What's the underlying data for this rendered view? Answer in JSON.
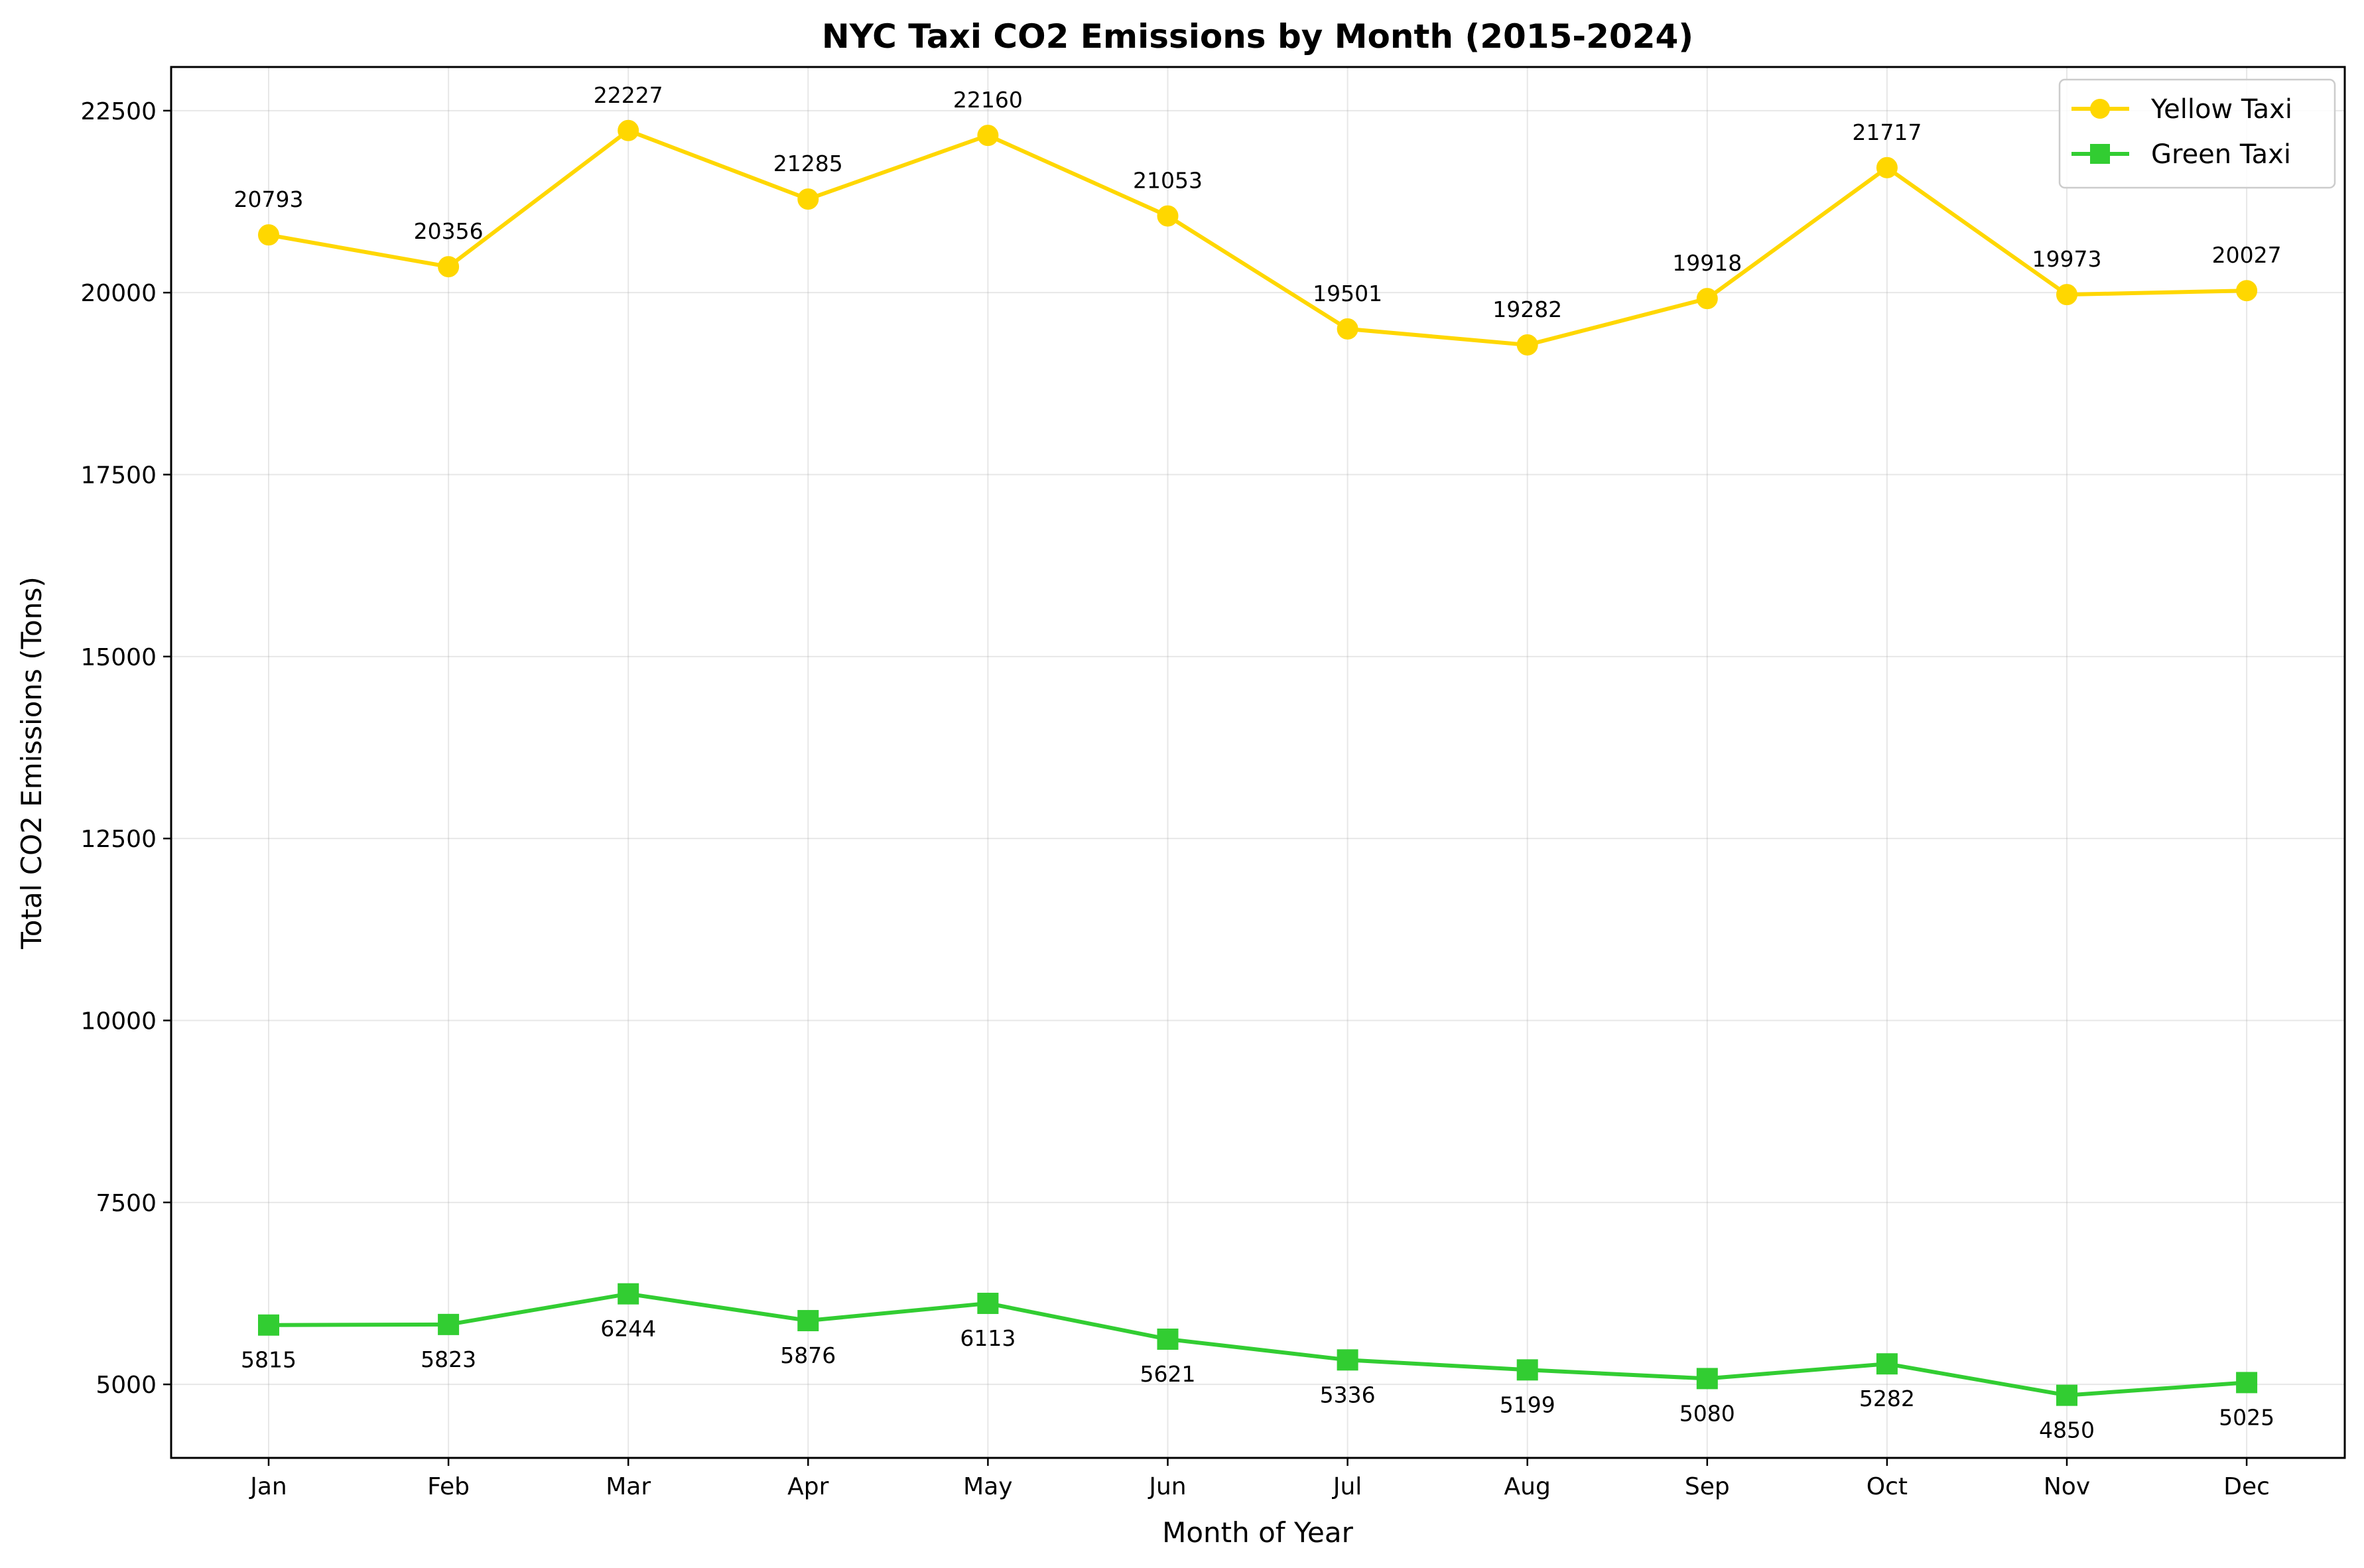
{
  "chart_data": {
    "type": "line",
    "title": "NYC Taxi CO2 Emissions by Month (2015-2024)",
    "xlabel": "Month of Year",
    "ylabel": "Total CO2 Emissions (Tons)",
    "categories": [
      "Jan",
      "Feb",
      "Mar",
      "Apr",
      "May",
      "Jun",
      "Jul",
      "Aug",
      "Sep",
      "Oct",
      "Nov",
      "Dec"
    ],
    "ylim": [
      3990,
      23100
    ],
    "yticks": [
      5000,
      7500,
      10000,
      12500,
      15000,
      17500,
      20000,
      22500
    ],
    "grid": true,
    "legend_position": "top-right",
    "series": [
      {
        "name": "Yellow Taxi",
        "color": "#FFD700",
        "marker": "circle",
        "label_position": "above",
        "values": [
          20793,
          20356,
          22227,
          21285,
          22160,
          21053,
          19501,
          19282,
          19918,
          21717,
          19973,
          20027
        ]
      },
      {
        "name": "Green Taxi",
        "color": "#32CD32",
        "marker": "square",
        "label_position": "below",
        "values": [
          5815,
          5823,
          6244,
          5876,
          6113,
          5621,
          5336,
          5199,
          5080,
          5282,
          4850,
          5025
        ]
      }
    ]
  }
}
